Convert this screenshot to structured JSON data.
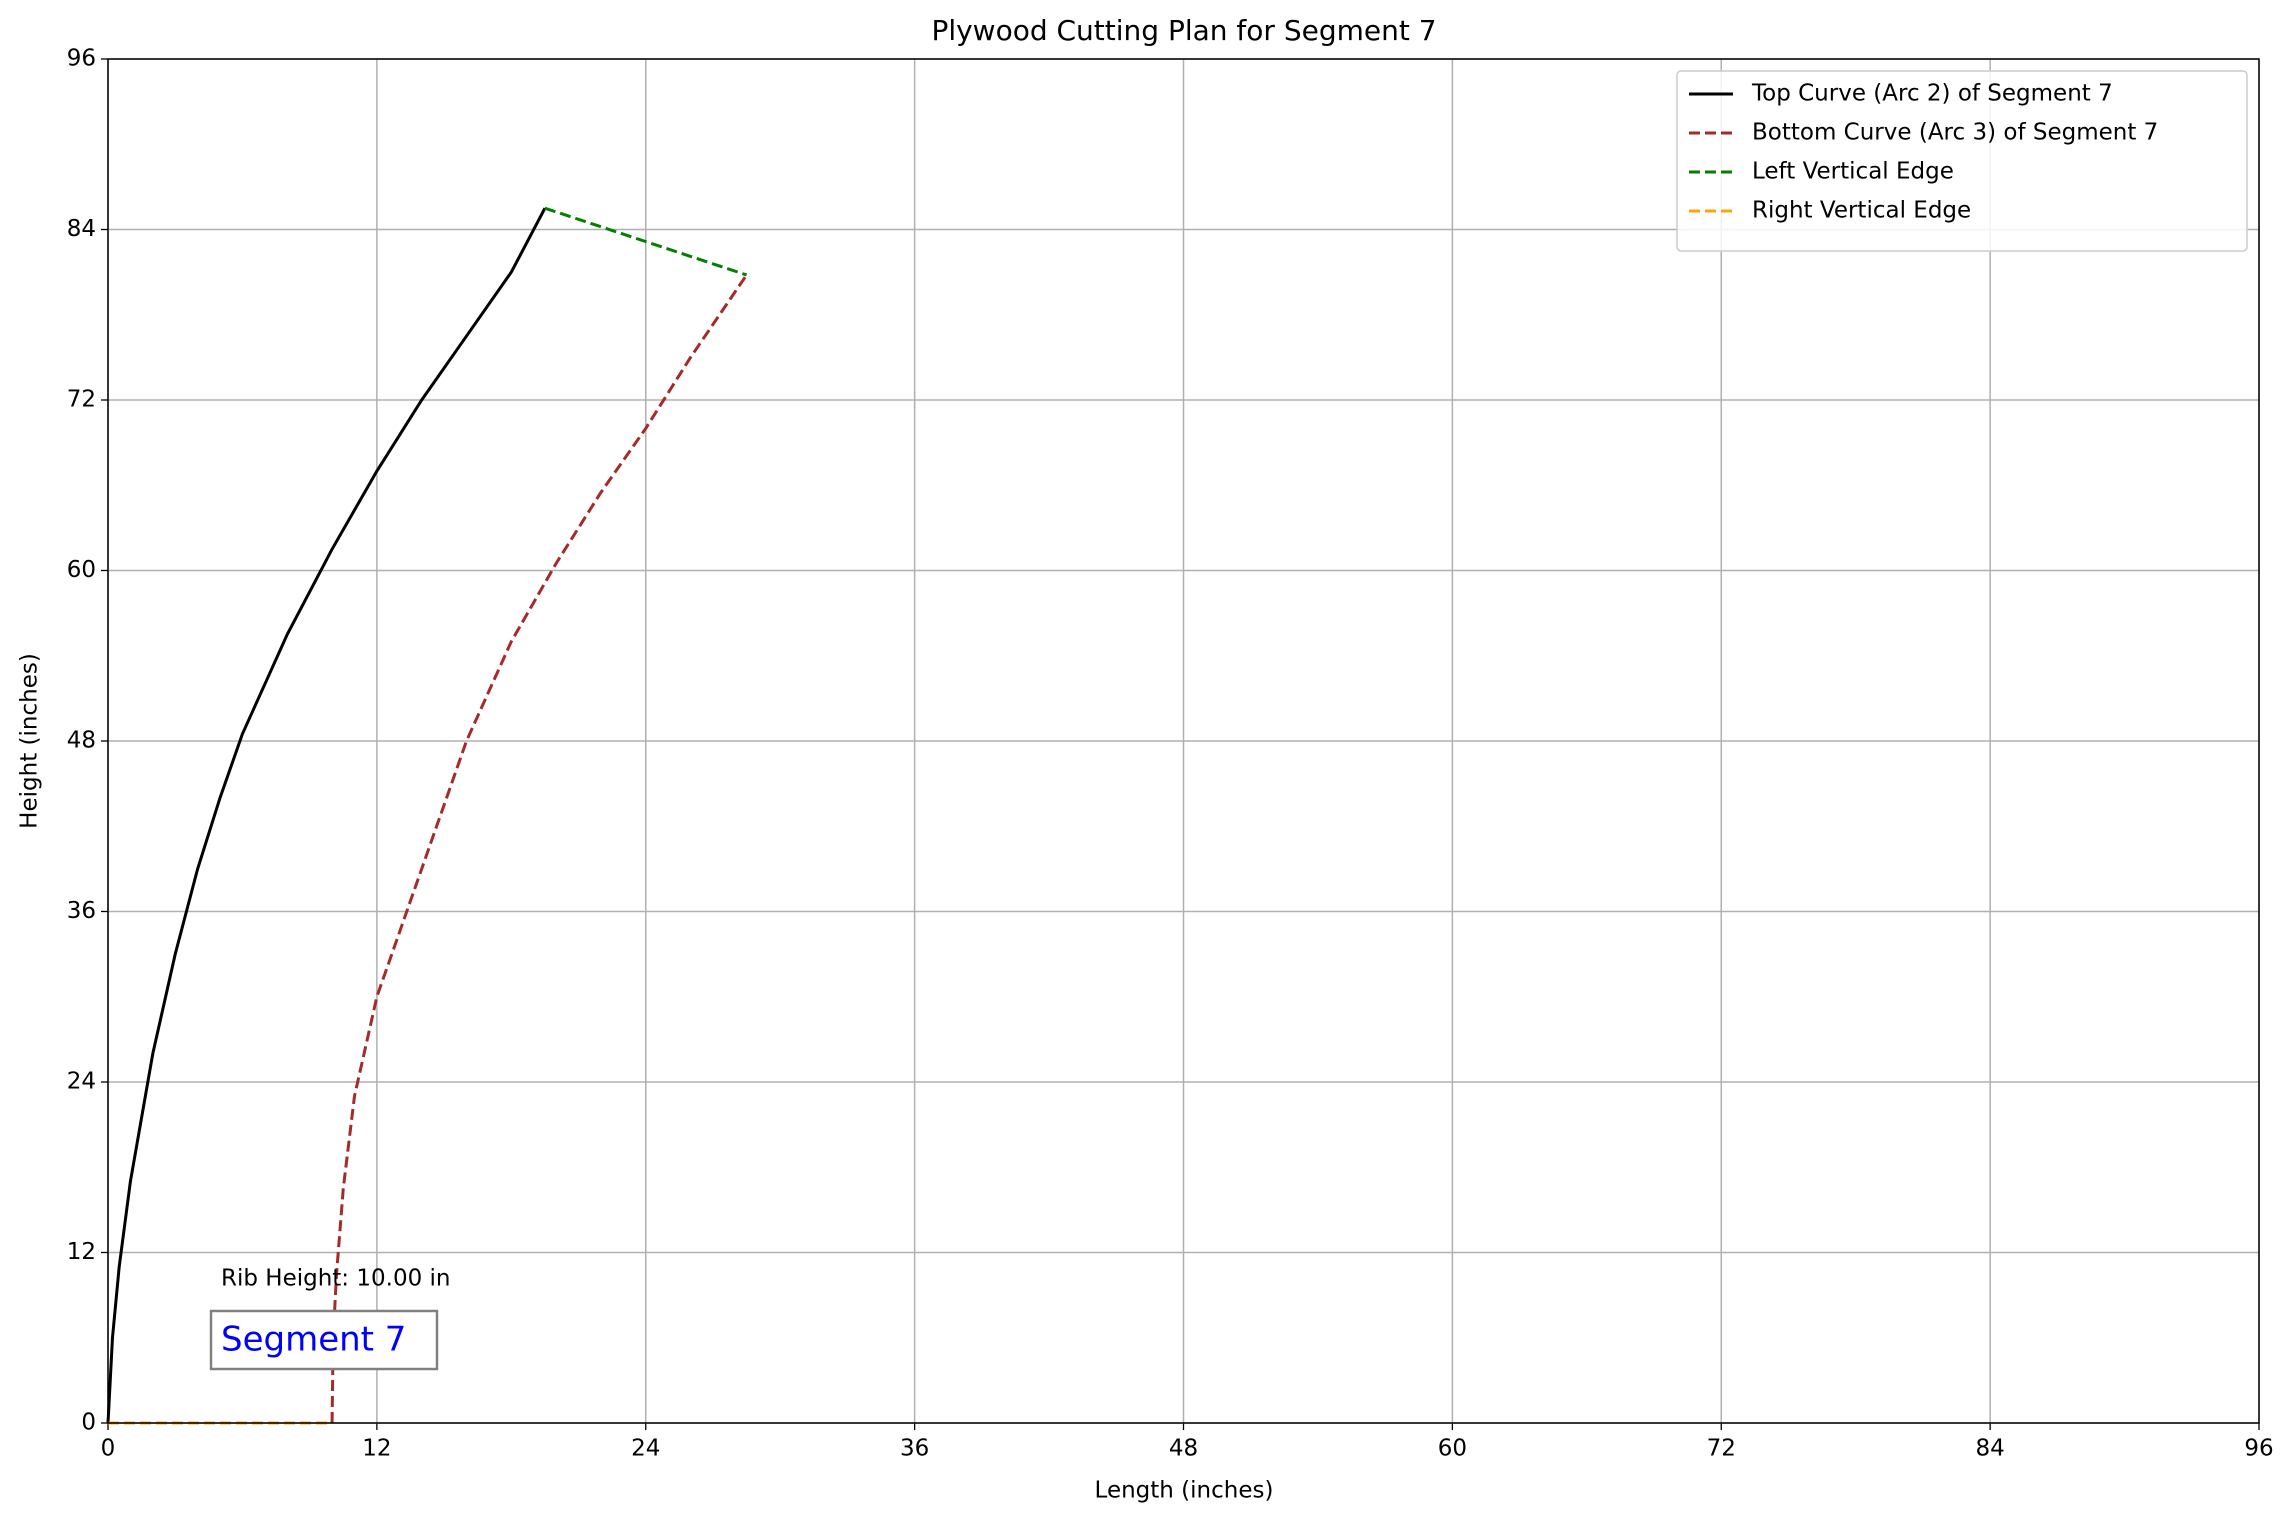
{
  "chart_data": {
    "type": "line",
    "title": "Plywood Cutting Plan for Segment 7",
    "xlabel": "Length (inches)",
    "ylabel": "Height (inches)",
    "xlim": [
      0,
      96
    ],
    "ylim": [
      0,
      96
    ],
    "xticks": [
      0,
      12,
      24,
      36,
      48,
      60,
      72,
      84,
      96
    ],
    "yticks": [
      0,
      12,
      24,
      36,
      48,
      60,
      72,
      84,
      96
    ],
    "grid": true,
    "legend": "upper right",
    "series": [
      {
        "name": "Top Curve (Arc 2) of Segment 7",
        "color": "#000000",
        "style": "solid",
        "x": [
          0,
          0.2,
          0.5,
          1,
          2,
          3,
          4,
          5,
          6,
          8,
          10,
          12,
          14,
          16,
          18,
          19.5
        ],
        "values": [
          0,
          6,
          11,
          17,
          26,
          33,
          39,
          44,
          48.5,
          55.5,
          61.5,
          67,
          72,
          76.5,
          81,
          85.5
        ]
      },
      {
        "name": "Bottom Curve (Arc 3) of Segment 7",
        "color": "#a52a2a",
        "style": "dashed",
        "x": [
          10,
          10.05,
          10.2,
          10.5,
          11,
          12,
          14,
          16,
          18,
          20,
          22,
          24,
          26,
          28.5
        ],
        "values": [
          0,
          6,
          10.5,
          16.5,
          23,
          30,
          39,
          48,
          55,
          60.5,
          65.5,
          70,
          75,
          80.8
        ]
      },
      {
        "name": "Left Vertical Edge",
        "color": "#008000",
        "style": "dashed",
        "x": [
          19.5,
          28.5
        ],
        "values": [
          85.5,
          80.8
        ]
      },
      {
        "name": "Right Vertical Edge",
        "color": "#ffa500",
        "style": "dashed",
        "x": [
          0,
          10
        ],
        "values": [
          0,
          0
        ]
      }
    ],
    "annotations": [
      "Rib Height: 10.00 in",
      "Segment 7"
    ]
  }
}
